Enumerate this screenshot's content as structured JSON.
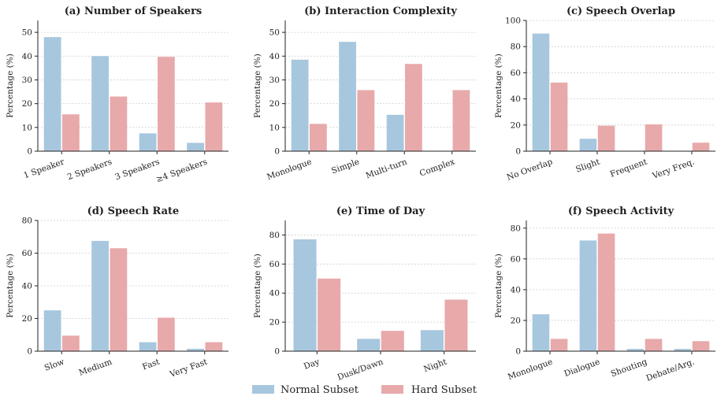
{
  "colors": {
    "normal": "#a7c7de",
    "hard": "#e8a9aa",
    "axis": "#222222",
    "grid": "#cfcfcf"
  },
  "legend": {
    "items": [
      "Normal Subset",
      "Hard Subset"
    ],
    "placement": "bottom-center"
  },
  "chart_data": [
    {
      "type": "bar",
      "title": "(a) Number of Speakers",
      "ylabel": "Percentage (%)",
      "ylim": [
        0,
        55
      ],
      "yticks": [
        0,
        10,
        20,
        30,
        40,
        50
      ],
      "grid": true,
      "categories": [
        "1 Speaker",
        "2 Speakers",
        "3 Speakers",
        "≥4 Speakers"
      ],
      "series": [
        {
          "name": "Normal Subset",
          "values": [
            48,
            40,
            7.5,
            3.5
          ]
        },
        {
          "name": "Hard Subset",
          "values": [
            15.5,
            23,
            39.7,
            20.5
          ]
        }
      ]
    },
    {
      "type": "bar",
      "title": "(b) Interaction Complexity",
      "ylabel": "Percentage (%)",
      "ylim": [
        0,
        55
      ],
      "yticks": [
        0,
        10,
        20,
        30,
        40,
        50
      ],
      "grid": true,
      "categories": [
        "Monologue",
        "Simple",
        "Multi-turn",
        "Complex"
      ],
      "series": [
        {
          "name": "Normal Subset",
          "values": [
            38.5,
            46,
            15.3,
            0
          ]
        },
        {
          "name": "Hard Subset",
          "values": [
            11.5,
            25.7,
            36.7,
            25.7
          ]
        }
      ]
    },
    {
      "type": "bar",
      "title": "(c) Speech Overlap",
      "ylabel": "Percentage (%)",
      "ylim": [
        0,
        100
      ],
      "yticks": [
        0,
        20,
        40,
        60,
        80,
        100
      ],
      "grid": true,
      "categories": [
        "No Overlap",
        "Slight",
        "Frequent",
        "Very Freq."
      ],
      "series": [
        {
          "name": "Normal Subset",
          "values": [
            90,
            9.5,
            0,
            0
          ]
        },
        {
          "name": "Hard Subset",
          "values": [
            52.5,
            19.5,
            20.5,
            6.5
          ]
        }
      ]
    },
    {
      "type": "bar",
      "title": "(d) Speech Rate",
      "ylabel": "Percentage (%)",
      "ylim": [
        0,
        80
      ],
      "yticks": [
        0,
        20,
        40,
        60,
        80
      ],
      "grid": true,
      "categories": [
        "Slow",
        "Medium",
        "Fast",
        "Very Fast"
      ],
      "series": [
        {
          "name": "Normal Subset",
          "values": [
            25,
            67.5,
            5.5,
            1.5
          ]
        },
        {
          "name": "Hard Subset",
          "values": [
            9.5,
            63,
            20.5,
            5.5
          ]
        }
      ]
    },
    {
      "type": "bar",
      "title": "(e) Time of Day",
      "ylabel": "Percentage (%)",
      "ylim": [
        0,
        90
      ],
      "yticks": [
        0,
        20,
        40,
        60,
        80
      ],
      "grid": true,
      "categories": [
        "Day",
        "Dusk/Dawn",
        "Night"
      ],
      "series": [
        {
          "name": "Normal Subset",
          "values": [
            77,
            8.5,
            14.5
          ]
        },
        {
          "name": "Hard Subset",
          "values": [
            50,
            14,
            35.5
          ]
        }
      ]
    },
    {
      "type": "bar",
      "title": "(f) Speech Activity",
      "ylabel": "Percentage (%)",
      "ylim": [
        0,
        85
      ],
      "yticks": [
        0,
        20,
        40,
        60,
        80
      ],
      "grid": true,
      "categories": [
        "Monologue",
        "Dialogue",
        "Shouting",
        "Debate/Arg."
      ],
      "series": [
        {
          "name": "Normal Subset",
          "values": [
            24,
            72,
            1.5,
            1.5
          ]
        },
        {
          "name": "Hard Subset",
          "values": [
            8,
            76.5,
            8,
            6.5
          ]
        }
      ]
    }
  ]
}
